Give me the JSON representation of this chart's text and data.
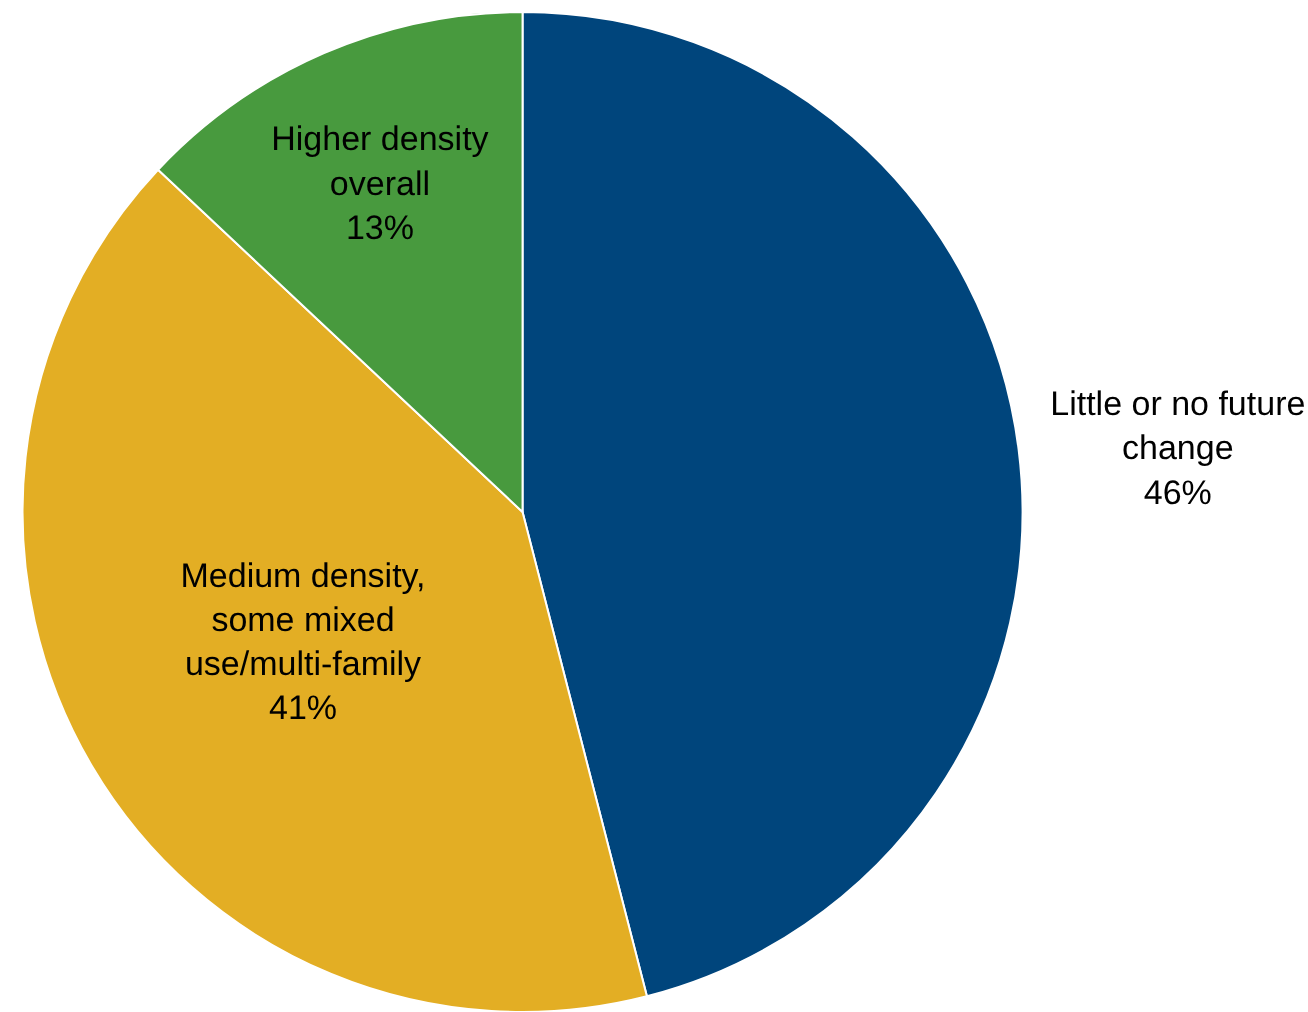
{
  "chart_data": {
    "type": "pie",
    "categories": [
      "Little or no future change",
      "Medium density, some mixed use/multi-family",
      "Higher density overall"
    ],
    "values": [
      46,
      41,
      13
    ],
    "value_labels": [
      "46%",
      "41%",
      "13%"
    ],
    "colors": [
      "#00457c",
      "#e3ae24",
      "#489a3e"
    ],
    "legend": false
  }
}
